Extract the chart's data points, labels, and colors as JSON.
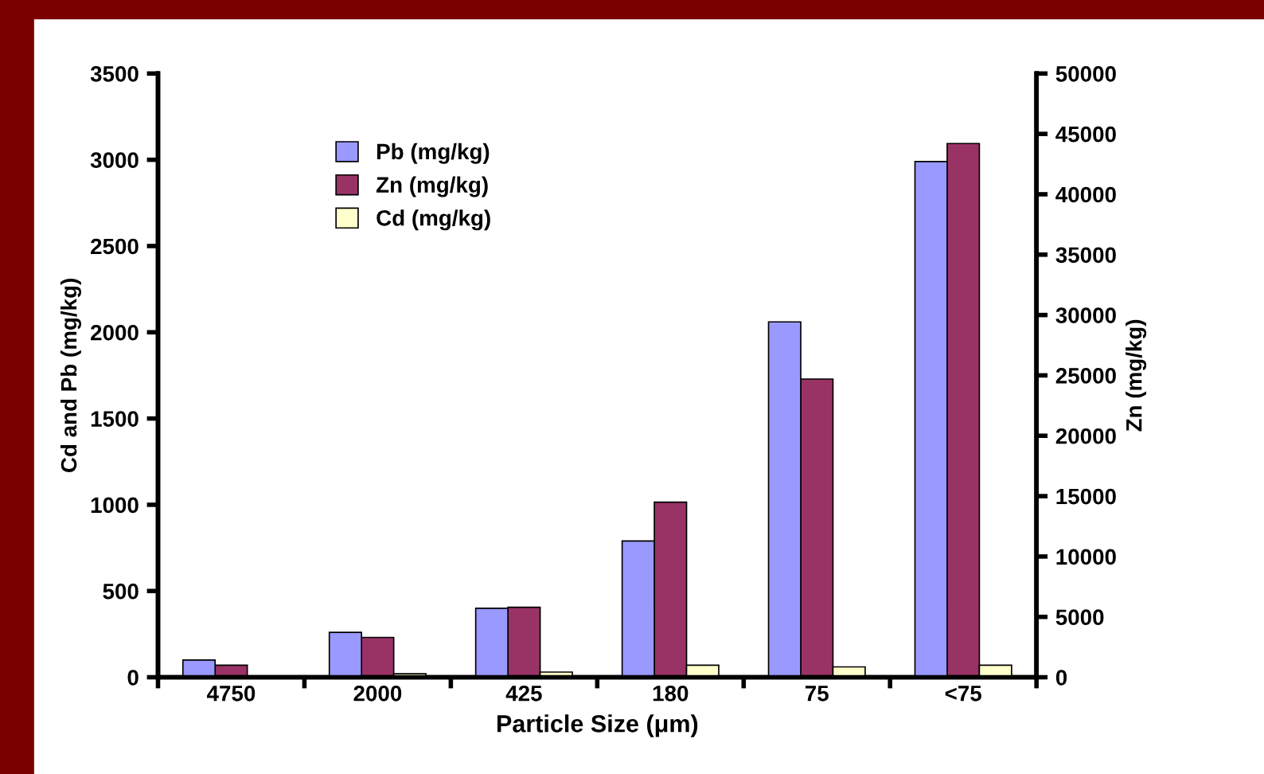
{
  "chart_data": {
    "type": "bar",
    "categories": [
      "4750",
      "2000",
      "425",
      "180",
      "75",
      "<75"
    ],
    "xlabel": "Particle Size (μm)",
    "ylabel": "Cd and Pb (mg/kg)",
    "y2label": "Zn (mg/kg)",
    "series": [
      {
        "name": "Pb (mg/kg)",
        "color": "#9999ff",
        "values": [
          100,
          260,
          400,
          790,
          2060,
          2990
        ]
      },
      {
        "name": "Zn (mg/kg)",
        "color": "#993366",
        "axis": "y2",
        "values": [
          1000,
          3300,
          5800,
          14500,
          24700,
          44200
        ]
      },
      {
        "name": "Cd (mg/kg)",
        "color": "#ffffcc",
        "values": [
          null,
          20,
          30,
          70,
          60,
          70
        ]
      }
    ],
    "ylim": [
      0,
      3500
    ],
    "yticks": [
      0,
      500,
      1000,
      1500,
      2000,
      2500,
      3000,
      3500
    ],
    "y2lim": [
      0,
      50000
    ],
    "y2ticks": [
      0,
      5000,
      10000,
      15000,
      20000,
      25000,
      30000,
      35000,
      40000,
      45000,
      50000
    ],
    "legend": "top left",
    "grid": false
  }
}
